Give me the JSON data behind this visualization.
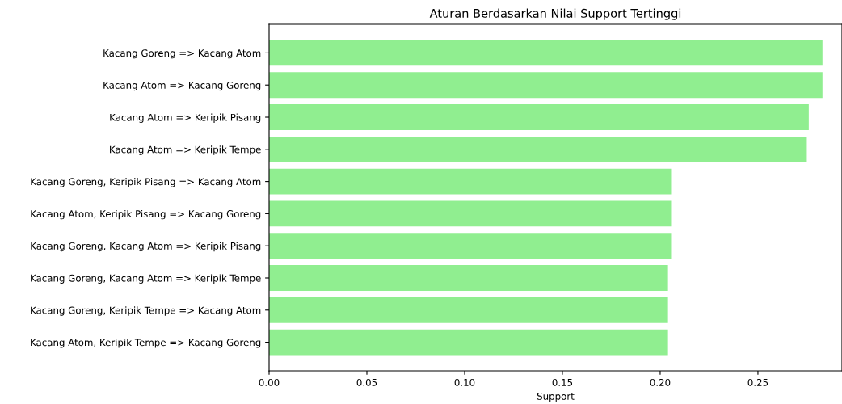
{
  "chart_data": {
    "type": "bar",
    "orientation": "horizontal",
    "title": "Aturan Berdasarkan Nilai Support Tertinggi",
    "xlabel": "Support",
    "categories": [
      "Kacang Goreng => Kacang Atom",
      "Kacang Atom => Kacang Goreng",
      "Kacang Atom => Keripik Pisang",
      "Kacang Atom => Keripik Tempe",
      "Kacang Goreng, Keripik Pisang => Kacang Atom",
      "Kacang Atom, Keripik Pisang => Kacang Goreng",
      "Kacang Goreng, Kacang Atom => Keripik Pisang",
      "Kacang Goreng, Kacang Atom => Keripik Tempe",
      "Kacang Goreng, Keripik Tempe => Kacang Atom",
      "Kacang Atom, Keripik Tempe => Kacang Goreng"
    ],
    "values": [
      0.283,
      0.283,
      0.276,
      0.275,
      0.206,
      0.206,
      0.206,
      0.204,
      0.204,
      0.204
    ],
    "color": "#90ee90",
    "xlim": [
      0,
      0.293
    ],
    "xticks": [
      {
        "value": 0,
        "label": "0.00"
      },
      {
        "value": 0.05,
        "label": "0.05"
      },
      {
        "value": 0.1,
        "label": "0.10"
      },
      {
        "value": 0.15,
        "label": "0.15"
      },
      {
        "value": 0.2,
        "label": "0.20"
      },
      {
        "value": 0.25,
        "label": "0.25"
      }
    ],
    "grid": false
  }
}
